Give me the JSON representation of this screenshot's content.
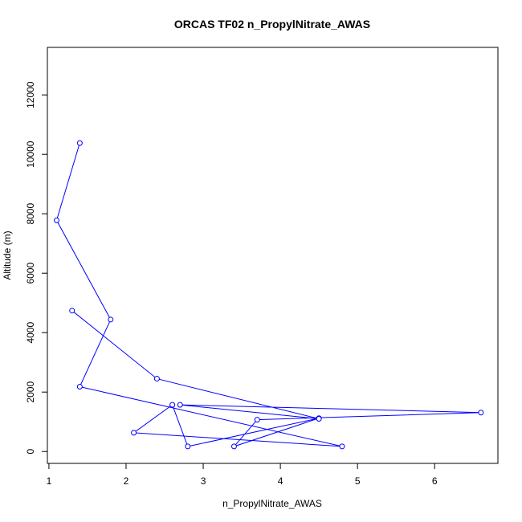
{
  "chart_data": {
    "type": "line",
    "title": "ORCAS TF02 n_PropylNitrate_AWAS",
    "xlabel": "n_PropylNitrate_AWAS",
    "ylabel": "Altitude (m)",
    "xlim": [
      0.98,
      6.82
    ],
    "ylim": [
      -400,
      13600
    ],
    "x_ticks": [
      1,
      2,
      3,
      4,
      5,
      6
    ],
    "y_ticks": [
      0,
      2000,
      4000,
      6000,
      8000,
      10000,
      12000
    ],
    "x_tick_labels": [
      "1",
      "2",
      "3",
      "4",
      "5",
      "6"
    ],
    "y_tick_labels": [
      "0",
      "2000",
      "4000",
      "6000",
      "8000",
      "10000",
      "12000"
    ],
    "grid": false,
    "series": [
      {
        "color": "#0000ff",
        "marker": "open-circle",
        "points": [
          {
            "x": 1.4,
            "y": 10380
          },
          {
            "x": 1.1,
            "y": 7780
          },
          {
            "x": 1.8,
            "y": 4440
          },
          {
            "x": 1.4,
            "y": 2180
          },
          {
            "x": 4.8,
            "y": 170
          },
          {
            "x": 2.1,
            "y": 630
          },
          {
            "x": 2.6,
            "y": 1570
          },
          {
            "x": 2.8,
            "y": 170
          },
          {
            "x": 4.5,
            "y": 1120
          },
          {
            "x": 3.4,
            "y": 170
          },
          {
            "x": 3.7,
            "y": 1070
          },
          {
            "x": 6.6,
            "y": 1310
          },
          {
            "x": 2.7,
            "y": 1570
          },
          {
            "x": 4.5,
            "y": 1100
          },
          {
            "x": 2.4,
            "y": 2450
          },
          {
            "x": 1.3,
            "y": 4740
          }
        ]
      }
    ]
  }
}
